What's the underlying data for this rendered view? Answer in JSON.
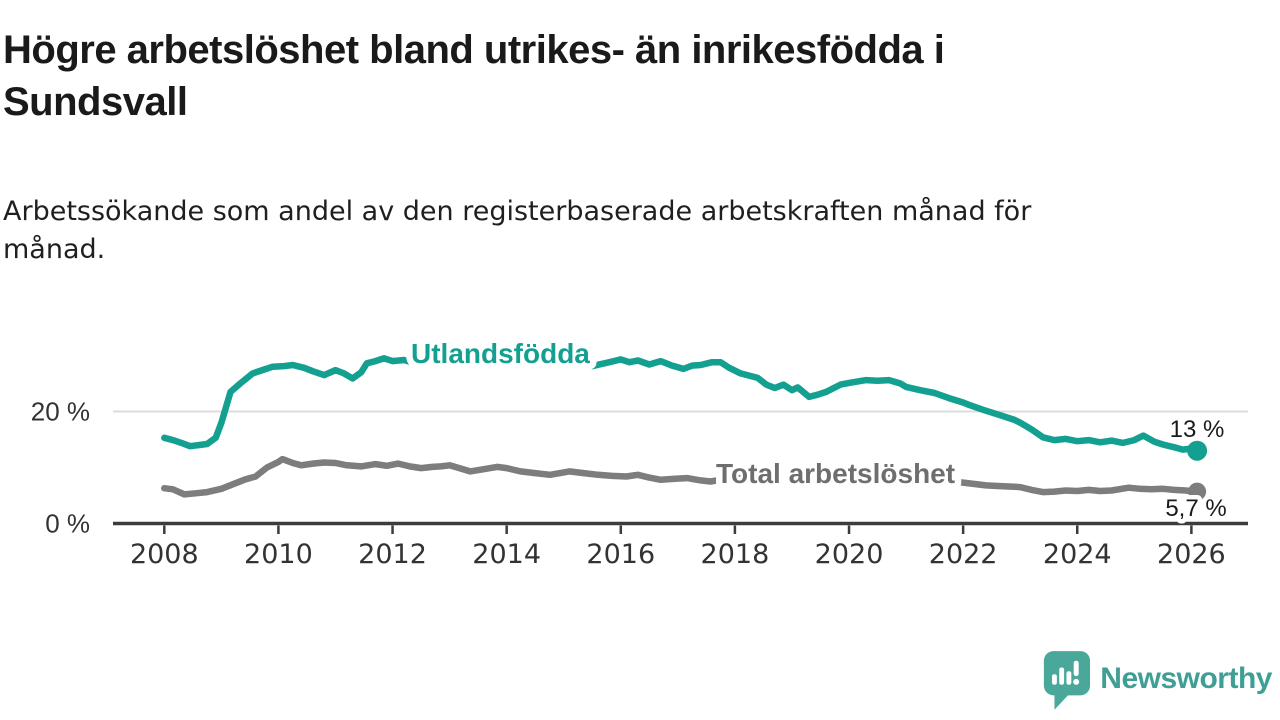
{
  "title": {
    "line1": "Högre arbetslöshet bland utrikes- än inrikesfödda i",
    "line2": "Sundsvall"
  },
  "subtitle": {
    "line1": "Arbetssökande som andel av den registerbaserade arbetskraften månad för",
    "line2": "månad."
  },
  "branding": {
    "name": "Newsworthy",
    "icon": "chart-speech-bubble-icon",
    "icon_color": "#4aa89a",
    "text_color": "#3f9f95"
  },
  "chart_data": {
    "type": "line",
    "title": "Högre arbetslöshet bland utrikes- än inrikesfödda i Sundsvall",
    "subtitle": "Arbetssökande som andel av den registerbaserade arbetskraften månad för månad.",
    "xlabel": "",
    "ylabel": "",
    "unit": "%",
    "xlim": [
      2007.8,
      2027
    ],
    "ylim": [
      0,
      33
    ],
    "grid": "single-horizontal-gridline-at-20",
    "legend_position": "labels-on-lines",
    "x_ticks": [
      2008,
      2010,
      2012,
      2014,
      2016,
      2018,
      2020,
      2022,
      2024,
      2026
    ],
    "y_gridlines": [
      {
        "value": 20,
        "label": "20 %"
      },
      {
        "value": 0,
        "label": "0 %"
      }
    ],
    "axis_color": "#3c3c3c",
    "grid_color": "#dcdcdc",
    "series": [
      {
        "name": "Utlandsfödda",
        "color": "#14a090",
        "label_color": "#14a090",
        "end_label": "13 %",
        "end_value": 13,
        "points": [
          [
            2008.0,
            15.3
          ],
          [
            2008.15,
            14.9
          ],
          [
            2008.3,
            14.4
          ],
          [
            2008.45,
            13.8
          ],
          [
            2008.6,
            14.0
          ],
          [
            2008.75,
            14.2
          ],
          [
            2008.9,
            15.3
          ],
          [
            2009.0,
            18.0
          ],
          [
            2009.16,
            23.5
          ],
          [
            2009.33,
            25.0
          ],
          [
            2009.55,
            26.8
          ],
          [
            2009.75,
            27.5
          ],
          [
            2009.9,
            28.0
          ],
          [
            2010.1,
            28.1
          ],
          [
            2010.25,
            28.3
          ],
          [
            2010.45,
            27.8
          ],
          [
            2010.6,
            27.2
          ],
          [
            2010.8,
            26.5
          ],
          [
            2011.0,
            27.4
          ],
          [
            2011.15,
            26.8
          ],
          [
            2011.3,
            25.9
          ],
          [
            2011.45,
            27.0
          ],
          [
            2011.55,
            28.6
          ],
          [
            2011.7,
            29.0
          ],
          [
            2011.85,
            29.5
          ],
          [
            2012.0,
            29.0
          ],
          [
            2012.2,
            29.2
          ],
          [
            2012.4,
            28.6
          ],
          [
            2012.6,
            29.0
          ],
          [
            2012.8,
            28.4
          ],
          [
            2013.0,
            28.8
          ],
          [
            2013.25,
            29.2
          ],
          [
            2013.5,
            28.6
          ],
          [
            2013.75,
            29.0
          ],
          [
            2014.0,
            28.4
          ],
          [
            2014.25,
            28.8
          ],
          [
            2014.5,
            28.3
          ],
          [
            2014.75,
            28.7
          ],
          [
            2015.0,
            28.2
          ],
          [
            2015.25,
            28.6
          ],
          [
            2015.5,
            28.1
          ],
          [
            2015.8,
            28.8
          ],
          [
            2016.0,
            29.3
          ],
          [
            2016.15,
            28.8
          ],
          [
            2016.3,
            29.1
          ],
          [
            2016.5,
            28.4
          ],
          [
            2016.7,
            29.0
          ],
          [
            2016.9,
            28.2
          ],
          [
            2017.1,
            27.6
          ],
          [
            2017.25,
            28.2
          ],
          [
            2017.4,
            28.3
          ],
          [
            2017.6,
            28.8
          ],
          [
            2017.75,
            28.8
          ],
          [
            2017.9,
            27.8
          ],
          [
            2018.1,
            26.8
          ],
          [
            2018.4,
            26.0
          ],
          [
            2018.55,
            24.8
          ],
          [
            2018.7,
            24.2
          ],
          [
            2018.85,
            24.8
          ],
          [
            2019.0,
            23.8
          ],
          [
            2019.1,
            24.3
          ],
          [
            2019.3,
            22.6
          ],
          [
            2019.45,
            23.0
          ],
          [
            2019.6,
            23.5
          ],
          [
            2019.85,
            24.8
          ],
          [
            2020.05,
            25.2
          ],
          [
            2020.3,
            25.6
          ],
          [
            2020.5,
            25.5
          ],
          [
            2020.7,
            25.6
          ],
          [
            2020.9,
            25.0
          ],
          [
            2021.0,
            24.4
          ],
          [
            2021.25,
            23.8
          ],
          [
            2021.5,
            23.3
          ],
          [
            2021.75,
            22.4
          ],
          [
            2022.0,
            21.6
          ],
          [
            2022.1,
            21.2
          ],
          [
            2022.35,
            20.3
          ],
          [
            2022.6,
            19.5
          ],
          [
            2022.9,
            18.5
          ],
          [
            2023.0,
            18.0
          ],
          [
            2023.2,
            16.8
          ],
          [
            2023.4,
            15.4
          ],
          [
            2023.6,
            14.9
          ],
          [
            2023.8,
            15.1
          ],
          [
            2024.0,
            14.7
          ],
          [
            2024.2,
            14.9
          ],
          [
            2024.4,
            14.5
          ],
          [
            2024.6,
            14.8
          ],
          [
            2024.8,
            14.4
          ],
          [
            2025.0,
            14.9
          ],
          [
            2025.16,
            15.7
          ],
          [
            2025.35,
            14.6
          ],
          [
            2025.5,
            14.1
          ],
          [
            2025.7,
            13.6
          ],
          [
            2025.85,
            13.2
          ],
          [
            2026.0,
            13.4
          ],
          [
            2026.1,
            13.0
          ]
        ]
      },
      {
        "name": "Total arbetslöshet",
        "color": "#7d7d7d",
        "label_color": "#6e6e6e",
        "end_label": "5,7 %",
        "end_value": 5.7,
        "points": [
          [
            2008.0,
            6.3
          ],
          [
            2008.15,
            6.1
          ],
          [
            2008.35,
            5.2
          ],
          [
            2008.55,
            5.4
          ],
          [
            2008.75,
            5.6
          ],
          [
            2009.0,
            6.2
          ],
          [
            2009.2,
            7.0
          ],
          [
            2009.4,
            7.8
          ],
          [
            2009.6,
            8.4
          ],
          [
            2009.8,
            10.0
          ],
          [
            2010.0,
            11.0
          ],
          [
            2010.07,
            11.5
          ],
          [
            2010.25,
            10.8
          ],
          [
            2010.4,
            10.4
          ],
          [
            2010.6,
            10.7
          ],
          [
            2010.8,
            10.9
          ],
          [
            2011.0,
            10.8
          ],
          [
            2011.2,
            10.4
          ],
          [
            2011.45,
            10.2
          ],
          [
            2011.7,
            10.6
          ],
          [
            2011.9,
            10.3
          ],
          [
            2012.1,
            10.7
          ],
          [
            2012.3,
            10.2
          ],
          [
            2012.5,
            9.9
          ],
          [
            2012.7,
            10.1
          ],
          [
            2012.85,
            10.2
          ],
          [
            2013.0,
            10.4
          ],
          [
            2013.2,
            9.8
          ],
          [
            2013.36,
            9.3
          ],
          [
            2013.6,
            9.7
          ],
          [
            2013.83,
            10.1
          ],
          [
            2014.0,
            9.9
          ],
          [
            2014.24,
            9.3
          ],
          [
            2014.5,
            9.0
          ],
          [
            2014.76,
            8.7
          ],
          [
            2015.1,
            9.3
          ],
          [
            2015.35,
            9.0
          ],
          [
            2015.6,
            8.7
          ],
          [
            2015.85,
            8.5
          ],
          [
            2016.1,
            8.4
          ],
          [
            2016.3,
            8.7
          ],
          [
            2016.5,
            8.2
          ],
          [
            2016.7,
            7.8
          ],
          [
            2016.95,
            8.0
          ],
          [
            2017.16,
            8.1
          ],
          [
            2017.4,
            7.7
          ],
          [
            2017.57,
            7.5
          ],
          [
            2018.0,
            8.2
          ],
          [
            2018.3,
            7.9
          ],
          [
            2018.6,
            7.7
          ],
          [
            2019.0,
            7.8
          ],
          [
            2019.3,
            7.5
          ],
          [
            2019.6,
            7.4
          ],
          [
            2020.0,
            8.0
          ],
          [
            2020.3,
            8.6
          ],
          [
            2020.6,
            8.8
          ],
          [
            2021.0,
            8.5
          ],
          [
            2021.3,
            8.1
          ],
          [
            2021.6,
            7.7
          ],
          [
            2022.0,
            7.3
          ],
          [
            2022.4,
            6.8
          ],
          [
            2022.6,
            6.7
          ],
          [
            2022.8,
            6.6
          ],
          [
            2023.0,
            6.5
          ],
          [
            2023.2,
            6.0
          ],
          [
            2023.4,
            5.6
          ],
          [
            2023.6,
            5.7
          ],
          [
            2023.8,
            5.9
          ],
          [
            2024.0,
            5.8
          ],
          [
            2024.2,
            6.0
          ],
          [
            2024.4,
            5.8
          ],
          [
            2024.6,
            5.9
          ],
          [
            2024.9,
            6.4
          ],
          [
            2025.1,
            6.2
          ],
          [
            2025.3,
            6.1
          ],
          [
            2025.5,
            6.2
          ],
          [
            2025.7,
            6.0
          ],
          [
            2025.9,
            5.9
          ],
          [
            2026.1,
            5.7
          ]
        ]
      }
    ]
  }
}
